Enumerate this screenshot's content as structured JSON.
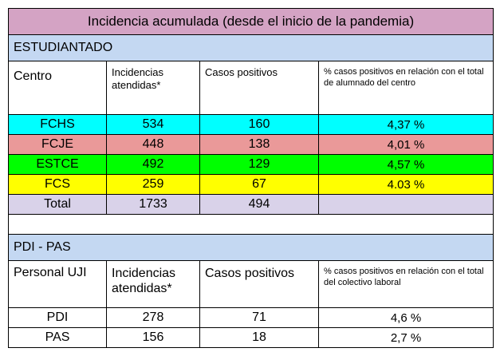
{
  "title": "Incidencia acumulada (desde el inicio de la pandemia)",
  "students": {
    "section_label": "ESTUDIANTADO",
    "headers": [
      "Centro",
      "Incidencias atendidas*",
      "Casos positivos",
      "% casos positivos en relación con el total de alumnado del centro"
    ],
    "rows": [
      {
        "centro": "FCHS",
        "incidencias": "534",
        "casos": "160",
        "pct": "4,37 %",
        "color": "#00ffff"
      },
      {
        "centro": "FCJE",
        "incidencias": "448",
        "casos": "138",
        "pct": "4,01 %",
        "color": "#ea9999"
      },
      {
        "centro": "ESTCE",
        "incidencias": "492",
        "casos": "129",
        "pct": "4,57 %",
        "color": "#00ff00"
      },
      {
        "centro": "FCS",
        "incidencias": "259",
        "casos": "67",
        "pct": "4.03 %",
        "color": "#ffff00"
      }
    ],
    "total": {
      "label": "Total",
      "incidencias": "1733",
      "casos": "494",
      "color": "#d9d2e9"
    }
  },
  "staff": {
    "section_label": "PDI - PAS",
    "headers": [
      "Personal UJI",
      "Incidencias atendidas*",
      "Casos positivos",
      "% casos positivos en relación con el total del colectivo laboral"
    ],
    "rows": [
      {
        "personal": "PDI",
        "incidencias": "278",
        "casos": "71",
        "pct": "4,6 %"
      },
      {
        "personal": "PAS",
        "incidencias": "156",
        "casos": "18",
        "pct": "2,7 %"
      }
    ]
  },
  "colors": {
    "title_bg": "#d4a3c4",
    "section_bg": "#c4d8f2"
  }
}
